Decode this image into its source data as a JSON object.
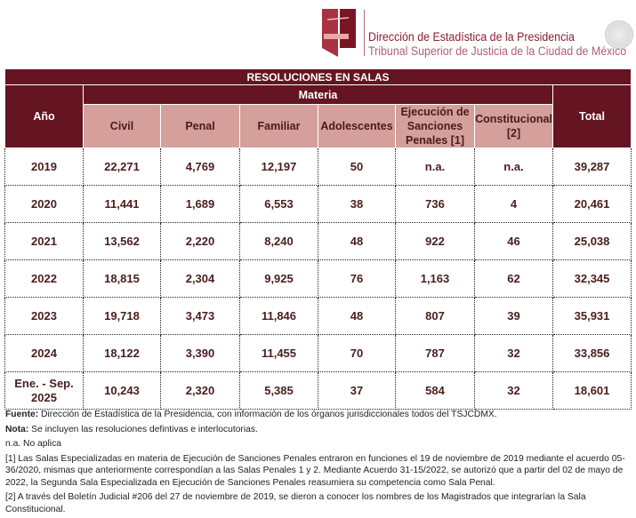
{
  "header": {
    "line1": "Dirección de Estadística de la Presidencia",
    "line2": "Tribunal Superior de Justicia de la Ciudad de México"
  },
  "table": {
    "title": "RESOLUCIONES EN SALAS",
    "year_header": "Año",
    "group_header": "Materia",
    "total_header": "Total",
    "columns": [
      "Civil",
      "Penal",
      "Familiar",
      "Adolescentes",
      "Ejecución de Sanciones Penales [1]",
      "Constitucional [2]"
    ],
    "rows": [
      [
        "2019",
        "22,271",
        "4,769",
        "12,197",
        "50",
        "n.a.",
        "n.a.",
        "39,287"
      ],
      [
        "2020",
        "11,441",
        "1,689",
        "6,553",
        "38",
        "736",
        "4",
        "20,461"
      ],
      [
        "2021",
        "13,562",
        "2,220",
        "8,240",
        "48",
        "922",
        "46",
        "25,038"
      ],
      [
        "2022",
        "18,815",
        "2,304",
        "9,925",
        "76",
        "1,163",
        "62",
        "32,345"
      ],
      [
        "2023",
        "19,718",
        "3,473",
        "11,846",
        "48",
        "807",
        "39",
        "35,931"
      ],
      [
        "2024",
        "18,122",
        "3,390",
        "11,455",
        "70",
        "787",
        "32",
        "33,856"
      ],
      [
        "Ene. - Sep. 2025",
        "10,243",
        "2,320",
        "5,385",
        "37",
        "584",
        "32",
        "18,601"
      ]
    ]
  },
  "notes": {
    "fuente_label": "Fuente:",
    "fuente": " Dirección de Estadística de la Presidencia, con información de los órganos jurisdiccionales todos del TSJCDMX.",
    "nota_label": "Nota:",
    "nota": " Se incluyen las resoluciones defintivas e interlocutorias.",
    "na": "n.a. No aplica",
    "fn1": "[1] Las Salas Especializadas en materia de Ejecución de Sanciones Penales entraron en funciones el 19 de noviembre de 2019 mediante el acuerdo 05-36/2020, mismas que anteriormente correspondían a las Salas Penales 1 y 2. Mediante Acuerdo 31-15/2022,  se autorizó que a partir del 02 de mayo de 2022, la Segunda Sala Especializada en Ejecución de Sanciones Penales reasumiera su competencia como Sala Penal.",
    "fn2": "[2] A través del Boletín Judicial #206 del 27 de noviembre de 2019, se dieron a conocer los nombres de los Magistrados que integrarían la Sala Constitucional."
  }
}
